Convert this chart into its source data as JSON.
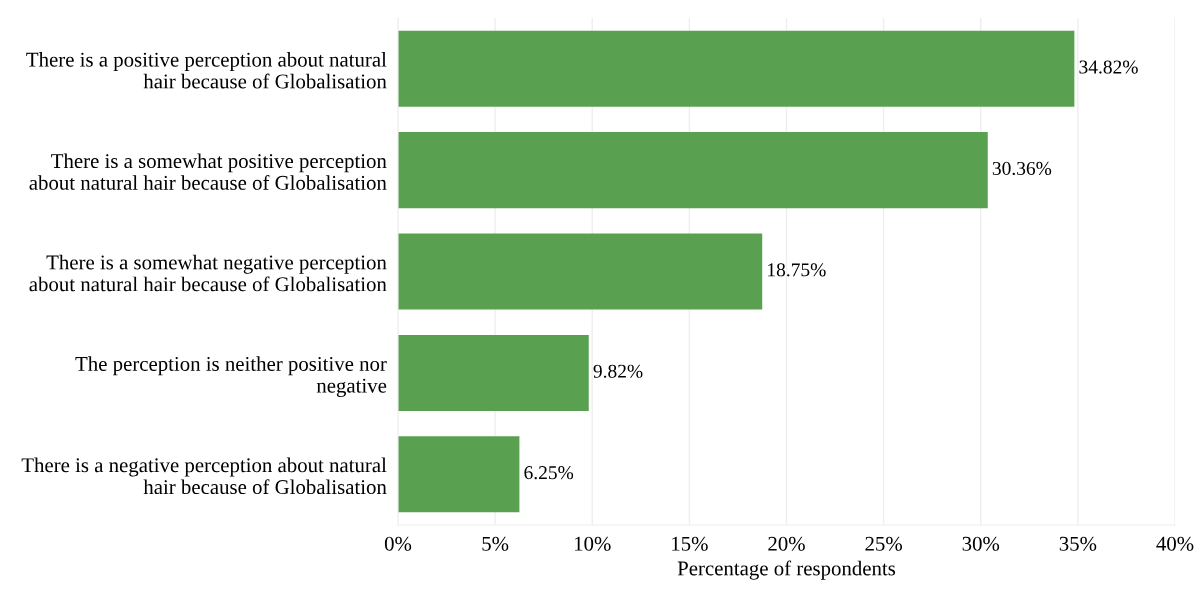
{
  "chart_data": {
    "type": "bar",
    "orientation": "horizontal",
    "xlabel": "Percentage of respondents",
    "categories": [
      "There is a positive perception about natural hair because of Globalisation",
      "There is a somewhat positive perception about natural hair because of Globalisation",
      "There is a somewhat negative perception about natural hair because of Globalisation",
      "The perception is neither positive nor negative",
      "There is a negative perception about natural hair because of Globalisation"
    ],
    "values": [
      34.82,
      30.36,
      18.75,
      9.82,
      6.25
    ],
    "value_labels": [
      "34.82%",
      "30.36%",
      "18.75%",
      "9.82%",
      "6.25%"
    ],
    "color": "#5aa051",
    "xlim": [
      0,
      40
    ],
    "xticks": [
      {
        "value": 0,
        "label": "0%"
      },
      {
        "value": 5,
        "label": "5%"
      },
      {
        "value": 10,
        "label": "10%"
      },
      {
        "value": 15,
        "label": "15%"
      },
      {
        "value": 20,
        "label": "20%"
      },
      {
        "value": 25,
        "label": "25%"
      },
      {
        "value": 30,
        "label": "30%"
      },
      {
        "value": 35,
        "label": "35%"
      },
      {
        "value": 40,
        "label": "40%"
      }
    ],
    "grid": "x"
  }
}
